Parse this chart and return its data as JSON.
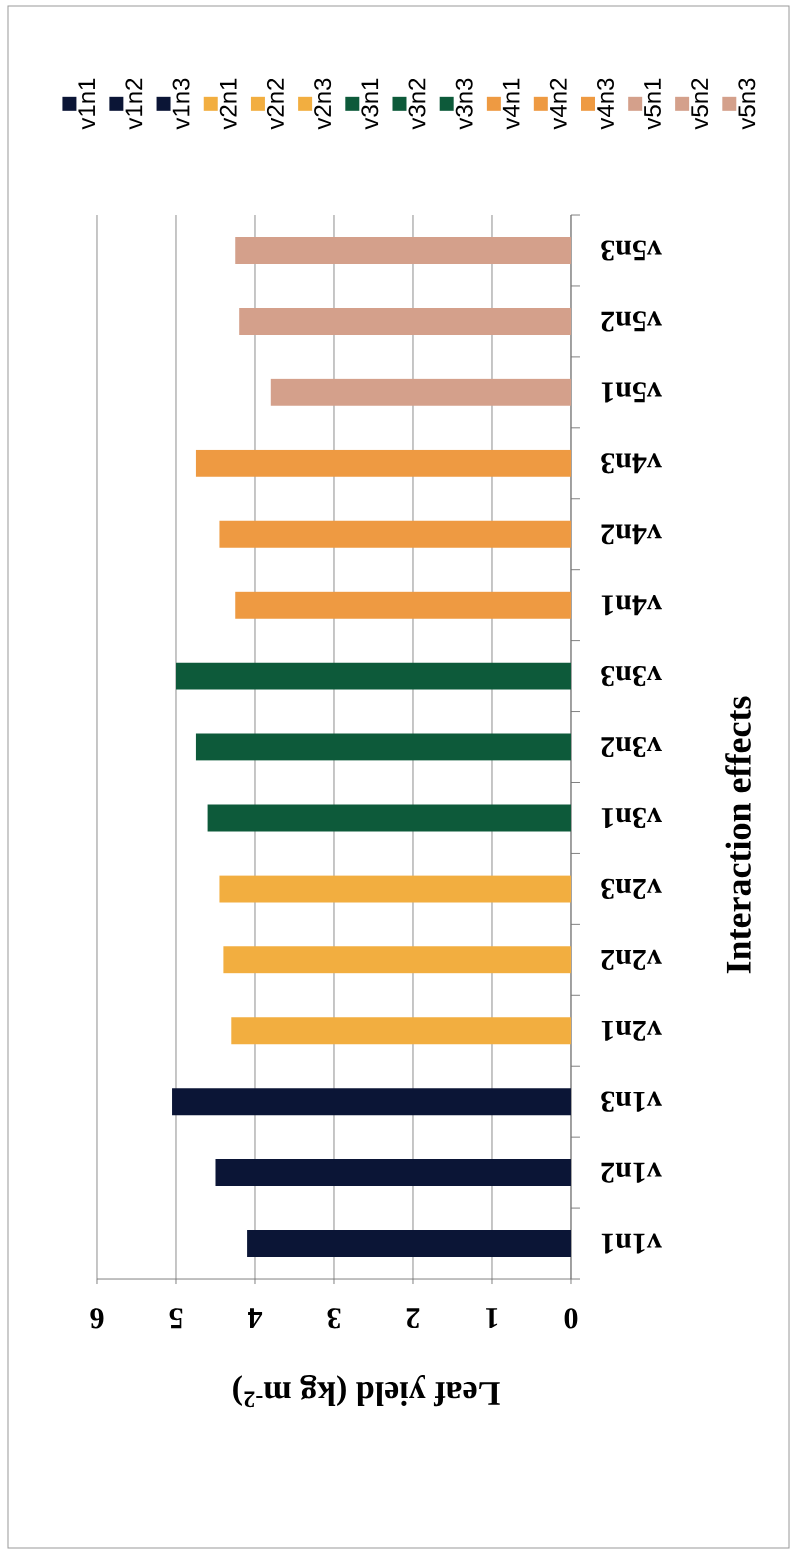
{
  "chart_data": {
    "type": "bar",
    "orientation": "horizontal",
    "xlabel": "Leaf yield (kg m$^{-2}$)",
    "ylabel": "Interaction effects",
    "categories": [
      "v5n3",
      "v5n2",
      "v5n1",
      "v4n3",
      "v4n2",
      "v4n1",
      "v3n3",
      "v3n2",
      "v3n1",
      "v2n3",
      "v2n2",
      "v2n1",
      "v1n3",
      "v1n2",
      "v1n1"
    ],
    "series": [
      {
        "name": "v1n1",
        "color": "#0b1536",
        "values": [
          null,
          null,
          null,
          null,
          null,
          null,
          null,
          null,
          null,
          null,
          null,
          null,
          null,
          null,
          4.1
        ]
      },
      {
        "name": "v1n2",
        "color": "#0b1536",
        "values": [
          null,
          null,
          null,
          null,
          null,
          null,
          null,
          null,
          null,
          null,
          null,
          null,
          null,
          4.5,
          null
        ]
      },
      {
        "name": "v1n3",
        "color": "#0b1536",
        "values": [
          null,
          null,
          null,
          null,
          null,
          null,
          null,
          null,
          null,
          null,
          null,
          null,
          5.05,
          null,
          null
        ]
      },
      {
        "name": "v2n1",
        "color": "#f2ae40",
        "values": [
          null,
          null,
          null,
          null,
          null,
          null,
          null,
          null,
          null,
          null,
          null,
          4.3,
          null,
          null,
          null
        ]
      },
      {
        "name": "v2n2",
        "color": "#f2ae40",
        "values": [
          null,
          null,
          null,
          null,
          null,
          null,
          null,
          null,
          null,
          null,
          4.4,
          null,
          null,
          null,
          null
        ]
      },
      {
        "name": "v2n3",
        "color": "#f2ae40",
        "values": [
          null,
          null,
          null,
          null,
          null,
          null,
          null,
          null,
          null,
          4.45,
          null,
          null,
          null,
          null,
          null
        ]
      },
      {
        "name": "v3n1",
        "color": "#0d5a3a",
        "values": [
          null,
          null,
          null,
          null,
          null,
          null,
          null,
          null,
          4.6,
          null,
          null,
          null,
          null,
          null,
          null
        ]
      },
      {
        "name": "v3n2",
        "color": "#0d5a3a",
        "values": [
          null,
          null,
          null,
          null,
          null,
          null,
          null,
          4.75,
          null,
          null,
          null,
          null,
          null,
          null,
          null
        ]
      },
      {
        "name": "v3n3",
        "color": "#0d5a3a",
        "values": [
          null,
          null,
          null,
          null,
          null,
          null,
          5.0,
          null,
          null,
          null,
          null,
          null,
          null,
          null,
          null
        ]
      },
      {
        "name": "v4n1",
        "color": "#ee9a42",
        "values": [
          null,
          null,
          null,
          null,
          null,
          4.25,
          null,
          null,
          null,
          null,
          null,
          null,
          null,
          null,
          null
        ]
      },
      {
        "name": "v4n2",
        "color": "#ee9a42",
        "values": [
          null,
          null,
          null,
          null,
          4.45,
          null,
          null,
          null,
          null,
          null,
          null,
          null,
          null,
          null,
          null
        ]
      },
      {
        "name": "v4n3",
        "color": "#ee9a42",
        "values": [
          null,
          null,
          null,
          4.75,
          null,
          null,
          null,
          null,
          null,
          null,
          null,
          null,
          null,
          null,
          null
        ]
      },
      {
        "name": "v5n1",
        "color": "#d4a08b",
        "values": [
          null,
          null,
          3.8,
          null,
          null,
          null,
          null,
          null,
          null,
          null,
          null,
          null,
          null,
          null,
          null
        ]
      },
      {
        "name": "v5n2",
        "color": "#d4a08b",
        "values": [
          null,
          4.2,
          null,
          null,
          null,
          null,
          null,
          null,
          null,
          null,
          null,
          null,
          null,
          null,
          null
        ]
      },
      {
        "name": "v5n3",
        "color": "#d4a08b",
        "values": [
          4.25,
          null,
          null,
          null,
          null,
          null,
          null,
          null,
          null,
          null,
          null,
          null,
          null,
          null,
          null
        ]
      }
    ],
    "xlim": [
      6,
      0
    ],
    "xticks": [
      0,
      1,
      2,
      3,
      4,
      5,
      6
    ],
    "grid": "x",
    "legend": "top"
  }
}
